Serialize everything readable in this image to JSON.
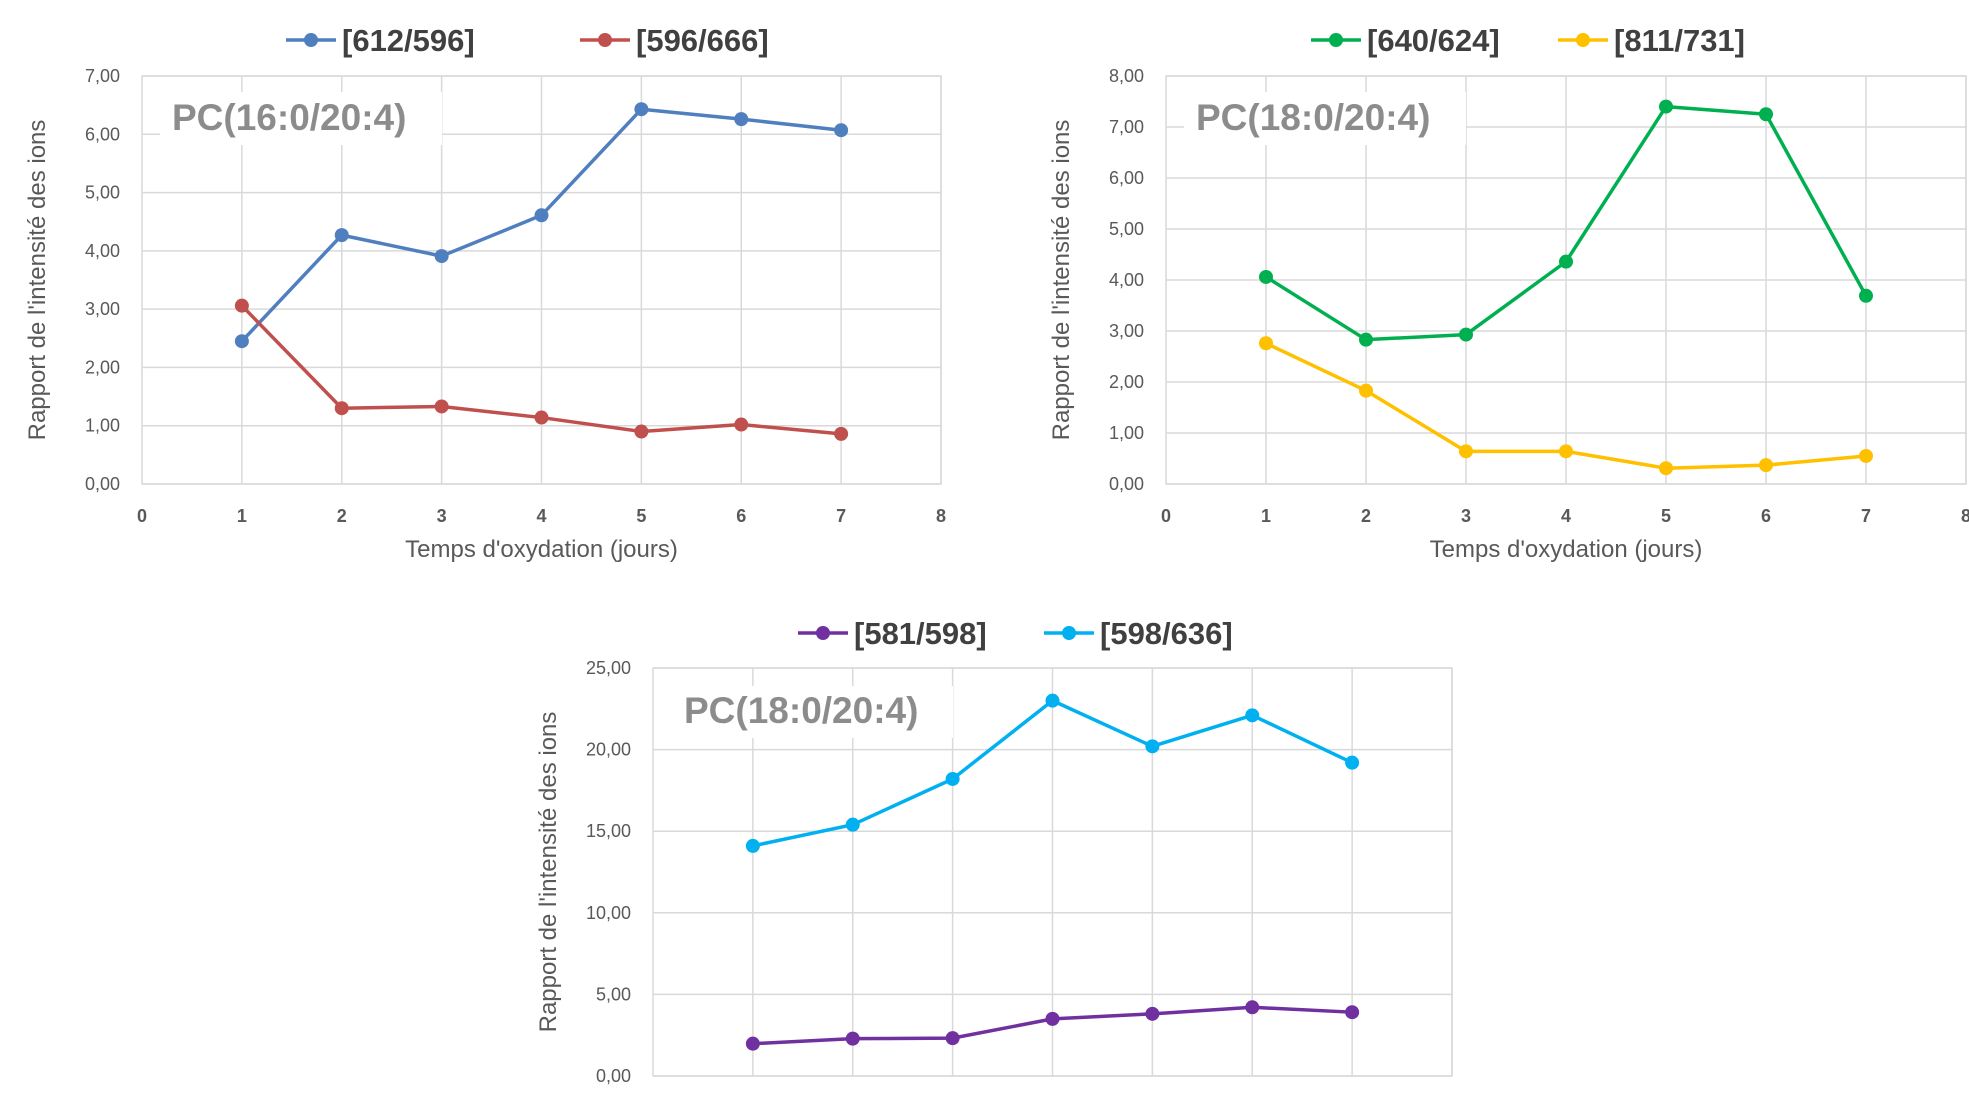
{
  "chart_data": [
    {
      "type": "line",
      "annotation": "PC(16:0/20:4)",
      "xlabel": "Temps d'oxydation (jours)",
      "ylabel": "Rapport de l'intensité des ions",
      "xlim": [
        0,
        8
      ],
      "ylim": [
        0,
        7
      ],
      "x_ticks": [
        "0",
        "1",
        "2",
        "3",
        "4",
        "5",
        "6",
        "7",
        "8"
      ],
      "y_ticks": [
        "0,00",
        "1,00",
        "2,00",
        "3,00",
        "4,00",
        "5,00",
        "6,00",
        "7,00"
      ],
      "grid": true,
      "legend_position": "top",
      "x": [
        1,
        2,
        3,
        4,
        5,
        6,
        7
      ],
      "series": [
        {
          "name": "[612/596]",
          "color": "#4f7fbf",
          "values": [
            2.45,
            4.27,
            3.91,
            4.61,
            6.43,
            6.26,
            6.07
          ]
        },
        {
          "name": "[596/666]",
          "color": "#c0504d",
          "values": [
            3.06,
            1.3,
            1.33,
            1.14,
            0.9,
            1.02,
            0.86
          ]
        }
      ]
    },
    {
      "type": "line",
      "annotation": "PC(18:0/20:4)",
      "xlabel": "Temps d'oxydation (jours)",
      "ylabel": "Rapport de l'intensité des ions",
      "xlim": [
        0,
        8
      ],
      "ylim": [
        0,
        8
      ],
      "x_ticks": [
        "0",
        "1",
        "2",
        "3",
        "4",
        "5",
        "6",
        "7",
        "8"
      ],
      "y_ticks": [
        "0,00",
        "1,00",
        "2,00",
        "3,00",
        "4,00",
        "5,00",
        "6,00",
        "7,00",
        "8,00"
      ],
      "grid": true,
      "legend_position": "top",
      "x": [
        1,
        2,
        3,
        4,
        5,
        6,
        7
      ],
      "series": [
        {
          "name": "[640/624]",
          "color": "#00b050",
          "values": [
            4.06,
            2.83,
            2.93,
            4.36,
            7.4,
            7.25,
            3.69
          ]
        },
        {
          "name": "[811/731]",
          "color": "#ffc000",
          "values": [
            2.76,
            1.83,
            0.64,
            0.64,
            0.31,
            0.37,
            0.55
          ]
        }
      ]
    },
    {
      "type": "line",
      "annotation": "PC(18:0/20:4)",
      "xlabel": "",
      "ylabel": "Rapport de l'intensité des ions",
      "xlim": [
        0,
        8
      ],
      "ylim": [
        0,
        25
      ],
      "x_ticks": [],
      "y_ticks": [
        "0,00",
        "5,00",
        "10,00",
        "15,00",
        "20,00",
        "25,00"
      ],
      "grid": true,
      "legend_position": "top",
      "x": [
        1,
        2,
        3,
        4,
        5,
        6,
        7
      ],
      "series": [
        {
          "name": "[581/598]",
          "color": "#7030a0",
          "values": [
            1.98,
            2.29,
            2.32,
            3.5,
            3.81,
            4.21,
            3.91
          ]
        },
        {
          "name": "[598/636]",
          "color": "#00b0f0",
          "values": [
            14.1,
            15.4,
            18.2,
            23.0,
            20.2,
            22.1,
            19.2
          ]
        }
      ]
    }
  ]
}
